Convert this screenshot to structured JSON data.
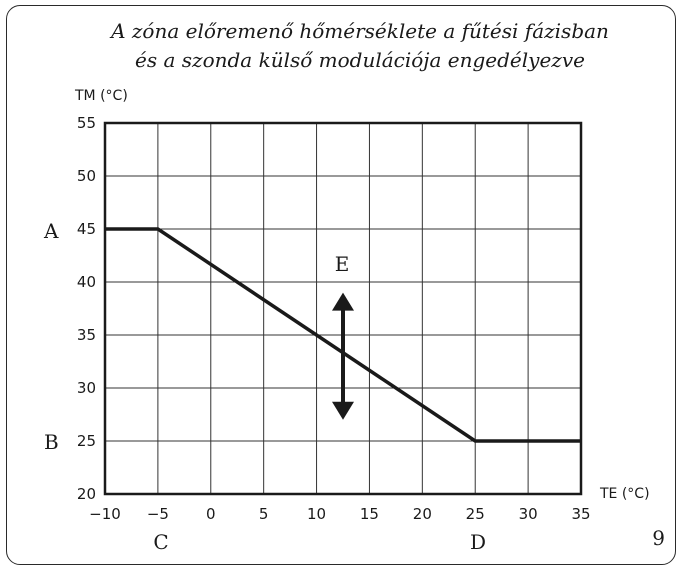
{
  "title_line1": "A zóna előremenő hőmérséklete a fűtési fázisban",
  "title_line2": "és a szonda külső modulációja engedélyezve",
  "page_number": "9",
  "chart_data": {
    "type": "line",
    "ylabel": "TM (°C)",
    "xlabel": "TE (°C)",
    "xlim": [
      -10,
      35
    ],
    "ylim": [
      20,
      55
    ],
    "xticks": [
      "-10",
      "-5",
      "0",
      "5",
      "10",
      "15",
      "20",
      "25",
      "30",
      "35"
    ],
    "yticks": [
      "20",
      "25",
      "30",
      "35",
      "40",
      "45",
      "50",
      "55"
    ],
    "grid": true,
    "series": [
      {
        "x": [
          -10,
          -5,
          25,
          35
        ],
        "y": [
          45,
          45,
          25,
          25
        ]
      }
    ],
    "annotations": {
      "A": {
        "text": "A",
        "y": 45
      },
      "B": {
        "text": "B",
        "y": 25
      },
      "C": {
        "text": "C",
        "x": -5
      },
      "D": {
        "text": "D",
        "x": 25
      },
      "E": {
        "text": "E",
        "x": 12.5,
        "y_range": [
          27,
          39
        ]
      }
    }
  }
}
